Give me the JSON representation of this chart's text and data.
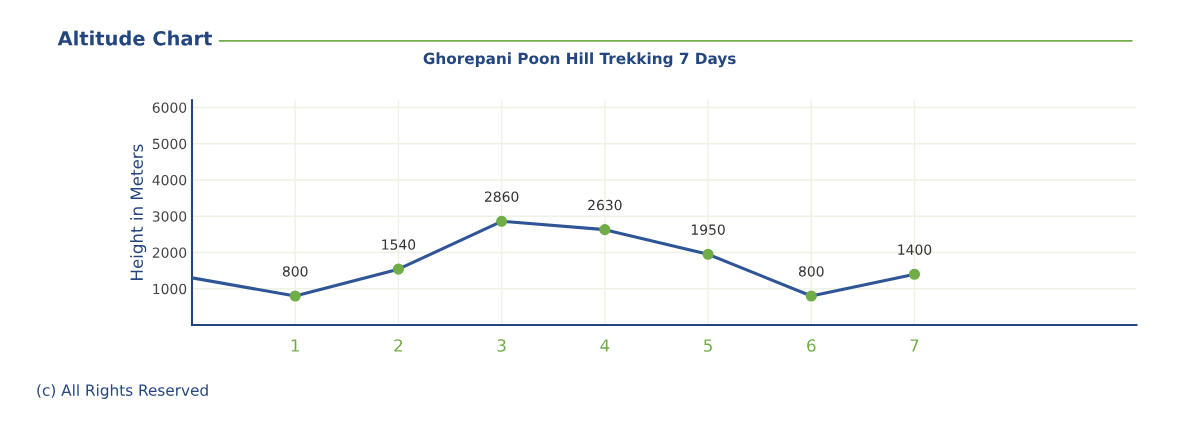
{
  "chart_data": {
    "type": "line",
    "title": "Altitude Chart",
    "subtitle": "Ghorepani Poon Hill Trekking 7 Days",
    "ylabel": "Height in Meters",
    "x": [
      0,
      1,
      2,
      3,
      4,
      5,
      6,
      7
    ],
    "series": [
      {
        "color": "#2f5597",
        "colors": [
          null,
          "#70ad47",
          "#70ad47",
          "#70ad47",
          "#70ad47",
          "#70ad47",
          "#70ad47",
          "#70ad47"
        ],
        "values": [
          1300,
          800,
          1540,
          2860,
          2630,
          1950,
          800,
          1400
        ],
        "value_labels": [
          null,
          "800",
          "1540",
          "2860",
          "2630",
          "1950",
          "800",
          "1400"
        ]
      }
    ],
    "xlim": [
      0,
      9.15
    ],
    "xticks": [
      1,
      2,
      3,
      4,
      5,
      6,
      7
    ],
    "ylim": [
      0,
      6200
    ],
    "yticks": [
      1000,
      2000,
      3000,
      4000,
      5000,
      6000
    ],
    "grid": true,
    "marker": "circle",
    "line_style": "solid",
    "legend": false,
    "annotations": [
      "(c) All Rights Reserved"
    ]
  }
}
